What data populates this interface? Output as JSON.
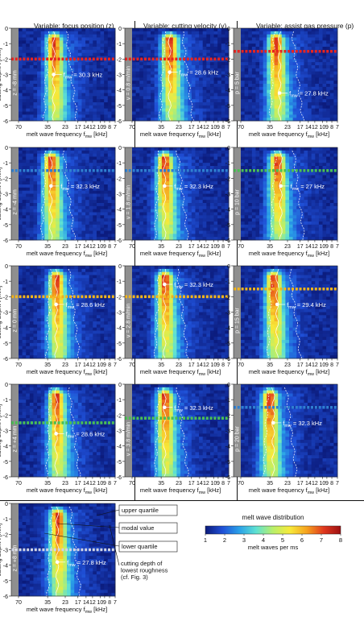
{
  "headers": {
    "focus": "Variable: focus position (z)",
    "velocity": "Variable: cutting velocity (v)",
    "pressure": "Variable: assist gas pressure (p)"
  },
  "axes": {
    "ylabel": "cutting depht t [mm]",
    "xlabel": "melt wave frequency f_mw [kHz]",
    "y_ticks": [
      "0",
      "-1",
      "-2",
      "-3",
      "-4",
      "-5",
      "-6"
    ],
    "x_ticks": [
      "70",
      "35",
      "23",
      "17",
      "14",
      "12",
      "10",
      "9",
      "8",
      "7"
    ]
  },
  "colorbar": {
    "title": "melt wave distribution",
    "label": "melt waves per ms",
    "ticks": [
      "1",
      "2",
      "3",
      "4",
      "5",
      "6",
      "7",
      "8"
    ],
    "colors": [
      "#0b1a7a",
      "#1f4fd6",
      "#2aa0e8",
      "#5ee1d2",
      "#b9ef6a",
      "#f7ea3a",
      "#f6a21e",
      "#e0381e",
      "#9c0f12"
    ]
  },
  "legend": {
    "upper_quartile": "upper quartile",
    "modal_value": "modal value",
    "lower_quartile": "lower quartile",
    "cut_depth": [
      "cutting depth of",
      "lowest roughness",
      "(cf. Fig. 3)"
    ]
  },
  "chart_data": [
    {
      "type": "heatmap",
      "row": 0,
      "col": 0,
      "param": "z = -8 mm",
      "freq_label": "f_mw = 30.3 kHz",
      "f_mw": 30.3,
      "depth_lowest_roughness": -2.0,
      "line_color": "#e8241f",
      "marker_t": -3.0
    },
    {
      "type": "heatmap",
      "row": 0,
      "col": 1,
      "param": "v = 0.8 m/min",
      "freq_label": "f_mw = 28.6 kHz",
      "f_mw": 28.6,
      "depth_lowest_roughness": -2.0,
      "line_color": "#e8241f",
      "marker_t": -2.85
    },
    {
      "type": "heatmap",
      "row": 0,
      "col": 2,
      "param": "p = 5 bar",
      "freq_label": "f_mw = 27.8 kHz",
      "f_mw": 27.8,
      "depth_lowest_roughness": -1.5,
      "line_color": "#e8241f",
      "marker_t": -4.2
    },
    {
      "type": "heatmap",
      "row": 1,
      "col": 0,
      "param": "z = -4 mm",
      "freq_label": "f_mw = 32.3 kHz",
      "f_mw": 32.3,
      "depth_lowest_roughness": -1.5,
      "line_color": "#2f7fd0",
      "marker_t": -2.5
    },
    {
      "type": "heatmap",
      "row": 1,
      "col": 1,
      "param": "v = 1.8 m/min",
      "freq_label": "f_mw = 32.3 kHz",
      "f_mw": 32.3,
      "depth_lowest_roughness": -1.5,
      "line_color": "#2f7fd0",
      "marker_t": -2.5
    },
    {
      "type": "heatmap",
      "row": 1,
      "col": 2,
      "param": "p = 10 bar",
      "freq_label": "f_mw = 27 kHz",
      "f_mw": 27.0,
      "depth_lowest_roughness": -1.5,
      "line_color": "#4bbf54",
      "marker_t": -2.5
    },
    {
      "type": "heatmap",
      "row": 2,
      "col": 0,
      "param": "z = 0 mm",
      "freq_label": "f_mw = 28.6 kHz",
      "f_mw": 28.6,
      "depth_lowest_roughness": -2.0,
      "line_color": "#f2b51c",
      "marker_t": -2.5
    },
    {
      "type": "heatmap",
      "row": 2,
      "col": 1,
      "param": "v = 2.8 m/min",
      "freq_label": "f_mw = 32.3 kHz",
      "f_mw": 32.3,
      "depth_lowest_roughness": -2.0,
      "line_color": "#f2b51c",
      "marker_t": -1.2
    },
    {
      "type": "heatmap",
      "row": 2,
      "col": 2,
      "param": "p = 15 bar",
      "freq_label": "f_mw = 29.4 kHz",
      "f_mw": 29.4,
      "depth_lowest_roughness": -1.5,
      "line_color": "#f2b51c",
      "marker_t": -2.5
    },
    {
      "type": "heatmap",
      "row": 3,
      "col": 0,
      "param": "z = +4 mm",
      "freq_label": "f_mw = 28.6 kHz",
      "f_mw": 28.6,
      "depth_lowest_roughness": -2.5,
      "line_color": "#4bbf54",
      "marker_t": -3.2
    },
    {
      "type": "heatmap",
      "row": 3,
      "col": 1,
      "param": "v = 3.8 m/min",
      "freq_label": "f_mw = 32.3 kHz",
      "f_mw": 32.3,
      "depth_lowest_roughness": -2.2,
      "line_color": "#4bbf54",
      "marker_t": -1.5
    },
    {
      "type": "heatmap",
      "row": 3,
      "col": 2,
      "param": "p = 20 bar",
      "freq_label": "f_mw = 32.3 kHz",
      "f_mw": 32.3,
      "depth_lowest_roughness": -1.5,
      "line_color": "#2f7fd0",
      "marker_t": -2.5
    },
    {
      "type": "heatmap",
      "row": 4,
      "col": 0,
      "param": "z = +8 mm",
      "freq_label": "f_mw = 27.8 kHz",
      "f_mw": 27.8,
      "depth_lowest_roughness": -3.0,
      "line_color": "#cfd4e6",
      "marker_t": -3.8
    }
  ]
}
